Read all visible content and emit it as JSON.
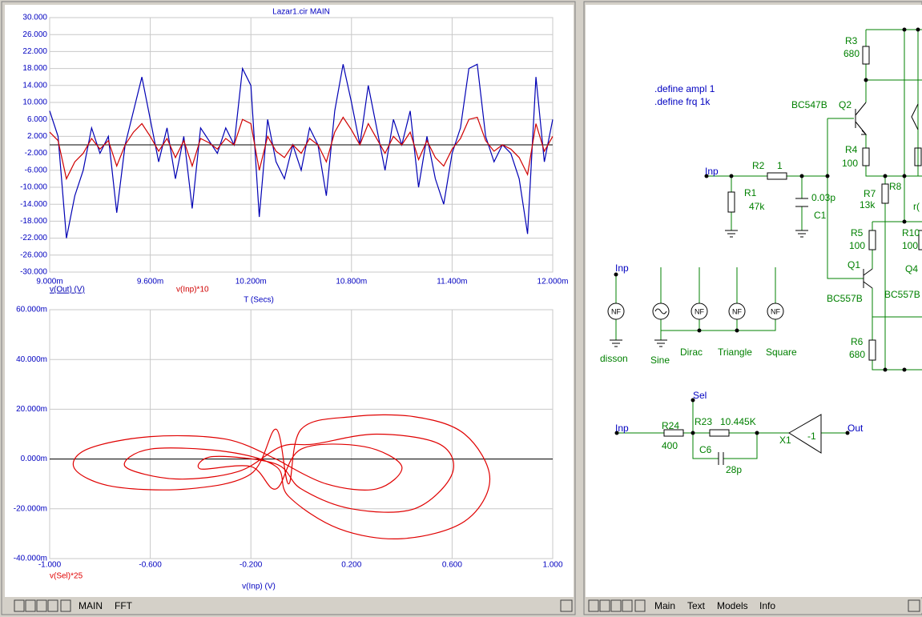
{
  "chart_data": [
    {
      "type": "line",
      "title": "Lazar1.cir MAIN",
      "x_label": "T (Secs)",
      "x": [
        0.009,
        0.00905,
        0.0091,
        0.00915,
        0.0092,
        0.00925,
        0.0093,
        0.00935,
        0.0094,
        0.00945,
        0.0095,
        0.00955,
        0.0096,
        0.00965,
        0.0097,
        0.00975,
        0.0098,
        0.00985,
        0.0099,
        0.00995,
        0.01,
        0.01005,
        0.0101,
        0.01015,
        0.0102,
        0.01025,
        0.0103,
        0.01035,
        0.0104,
        0.01045,
        0.0105,
        0.01055,
        0.0106,
        0.01065,
        0.0107,
        0.01075,
        0.0108,
        0.01085,
        0.0109,
        0.01095,
        0.011,
        0.01105,
        0.0111,
        0.01115,
        0.0112,
        0.01125,
        0.0113,
        0.01135,
        0.0114,
        0.01145,
        0.0115,
        0.01155,
        0.0116,
        0.01165,
        0.0117,
        0.01175,
        0.0118,
        0.01185,
        0.0119,
        0.01195,
        0.012
      ],
      "series": [
        {
          "name": "v(Out) (V)",
          "color": "#0000b4",
          "values": [
            8,
            2,
            -22,
            -12,
            -6,
            4,
            -2,
            2,
            -16,
            0,
            8,
            16,
            6,
            -4,
            4,
            -8,
            2,
            -15,
            4,
            1,
            -2,
            4,
            0,
            18,
            14,
            -17,
            6,
            -4,
            -8,
            0,
            -6,
            4,
            0,
            -12,
            8,
            19,
            10,
            0,
            14,
            4,
            -6,
            6,
            0,
            8,
            -10,
            2,
            -8,
            -14,
            -2,
            4,
            18,
            19,
            2,
            -4,
            0,
            -2,
            -8,
            -21,
            16,
            -4,
            6
          ]
        },
        {
          "name": "v(Inp)*10",
          "color": "#d00000",
          "values": [
            3,
            1,
            -8,
            -4,
            -2,
            1.5,
            -1,
            1,
            -5,
            0,
            3,
            5,
            2,
            -1.5,
            1.5,
            -3,
            1,
            -5,
            1.5,
            0.5,
            -1,
            1.5,
            0,
            6,
            5,
            -6,
            2,
            -1.5,
            -3,
            0,
            -2,
            1.5,
            0,
            -4,
            3,
            6.5,
            3.5,
            0,
            5,
            1.5,
            -2,
            2,
            0,
            3,
            -3.5,
            1,
            -3,
            -5,
            -1,
            1.5,
            6,
            6.5,
            1,
            -1.5,
            0,
            -1,
            -3,
            -7,
            5,
            -1.5,
            2
          ]
        }
      ],
      "xlim": [
        0.009,
        0.012
      ],
      "xticks": [
        {
          "value": 0.009,
          "label": "9.000m"
        },
        {
          "value": 0.0096,
          "label": "9.600m"
        },
        {
          "value": 0.0102,
          "label": "10.200m"
        },
        {
          "value": 0.0108,
          "label": "10.800m"
        },
        {
          "value": 0.0114,
          "label": "11.400m"
        },
        {
          "value": 0.012,
          "label": "12.000m"
        }
      ],
      "ylim": [
        -30,
        30
      ],
      "yticks": [
        {
          "value": 30,
          "label": "30.000"
        },
        {
          "value": 26,
          "label": "26.000"
        },
        {
          "value": 22,
          "label": "22.000"
        },
        {
          "value": 18,
          "label": "18.000"
        },
        {
          "value": 14,
          "label": "14.000"
        },
        {
          "value": 10,
          "label": "10.000"
        },
        {
          "value": 6,
          "label": "6.000"
        },
        {
          "value": 2,
          "label": "2.000"
        },
        {
          "value": -2,
          "label": "-2.000"
        },
        {
          "value": -6,
          "label": "-6.000"
        },
        {
          "value": -10,
          "label": "-10.000"
        },
        {
          "value": -14,
          "label": "-14.000"
        },
        {
          "value": -18,
          "label": "-18.000"
        },
        {
          "value": -22,
          "label": "-22.000"
        },
        {
          "value": -26,
          "label": "-26.000"
        },
        {
          "value": -30,
          "label": "-30.000"
        }
      ],
      "grid": true
    },
    {
      "type": "line",
      "x_label": "v(Inp) (V)",
      "series": [
        {
          "name": "v(Sel)*25",
          "color": "#e00000",
          "x": [
            -0.1,
            -0.3,
            -0.6,
            -0.85,
            -0.9,
            -0.75,
            -0.45,
            -0.2,
            -0.1,
            -0.05,
            0,
            0.2,
            0.45,
            0.65,
            0.75,
            0.65,
            0.4,
            0.15,
            -0.05,
            -0.1,
            -0.3,
            -0.6,
            -0.7,
            -0.5,
            -0.25,
            -0.08,
            0.05,
            0.3,
            0.55,
            0.6,
            0.45,
            0.2,
            0,
            -0.1,
            -0.35,
            -0.4,
            -0.2,
            -0.1,
            0,
            0.25,
            0.4,
            0.3,
            0.1,
            -0.1
          ],
          "values": [
            0,
            0.008,
            0.009,
            0.004,
            -0.004,
            -0.011,
            -0.012,
            -0.006,
            0.012,
            -0.01,
            0.012,
            0.017,
            0.017,
            0.01,
            -0.008,
            -0.025,
            -0.032,
            -0.028,
            -0.015,
            -0.003,
            0.003,
            0.004,
            -0.003,
            -0.008,
            -0.005,
            0.005,
            0.006,
            0.01,
            0.006,
            -0.006,
            -0.02,
            -0.02,
            -0.012,
            -0.002,
            0.001,
            -0.004,
            -0.003,
            -0.012,
            0.004,
            0.005,
            -0.003,
            -0.012,
            -0.01,
            0
          ]
        }
      ],
      "xlim": [
        -1,
        1
      ],
      "xticks": [
        {
          "value": -1,
          "label": "-1.000"
        },
        {
          "value": -0.6,
          "label": "-0.600"
        },
        {
          "value": -0.2,
          "label": "-0.200"
        },
        {
          "value": 0.2,
          "label": "0.200"
        },
        {
          "value": 0.6,
          "label": "0.600"
        },
        {
          "value": 1,
          "label": "1.000"
        }
      ],
      "ylim": [
        -0.04,
        0.06
      ],
      "yticks": [
        {
          "value": 0.06,
          "label": "60.000m"
        },
        {
          "value": 0.04,
          "label": "40.000m"
        },
        {
          "value": 0.02,
          "label": "20.000m"
        },
        {
          "value": 0,
          "label": "0.000m"
        },
        {
          "value": -0.02,
          "label": "-20.000m"
        },
        {
          "value": -0.04,
          "label": "-40.000m"
        }
      ],
      "grid": true
    }
  ],
  "schematic": {
    "texts": [
      ".define ampl 1",
      ".define frq 1k",
      "R3",
      "680",
      "BC547B",
      "Q2",
      "R4",
      "100",
      "Inp",
      "R2",
      "1",
      "R1",
      "47k",
      "0.03p",
      "C1",
      "R7",
      "13k",
      "R8",
      "R5",
      "100",
      "R10",
      "100",
      "r(",
      "Q1",
      "Q4",
      "BC557B",
      "BC557B",
      "R6",
      "680",
      "Inp",
      "NF",
      "NF",
      "NF",
      "NF",
      "disson",
      "Sine",
      "Dirac",
      "Triangle",
      "Square",
      "Sel",
      "Inp",
      "R24",
      "400",
      "R23",
      "10.445K",
      "C6",
      "28p",
      "X1",
      "-1",
      "Out"
    ]
  },
  "tabs": {
    "left": [
      "MAIN",
      "FFT"
    ],
    "right": [
      "Main",
      "Text",
      "Models",
      "Info"
    ]
  }
}
